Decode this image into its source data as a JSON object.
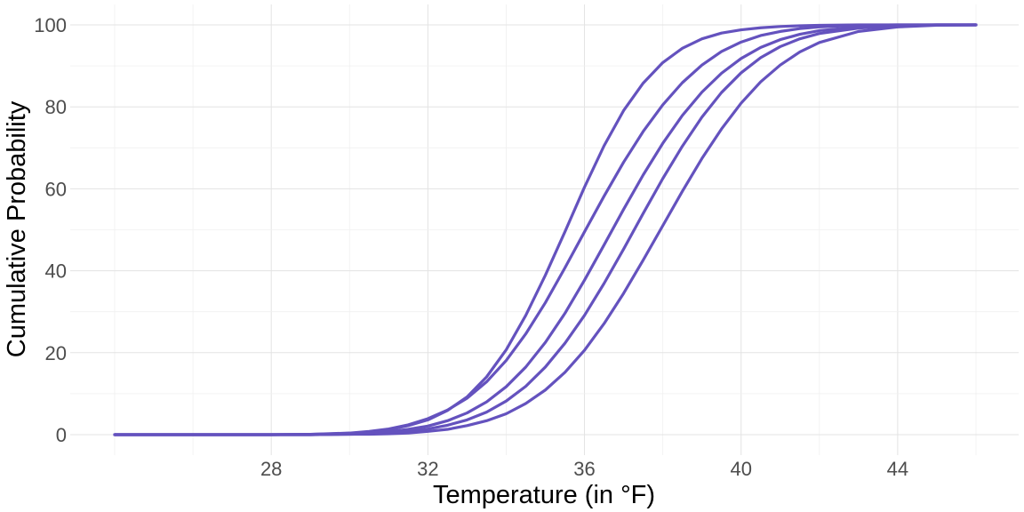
{
  "chart_data": {
    "type": "line",
    "title": "",
    "xlabel": "Temperature (in °F)",
    "ylabel": "Cumulative Probability",
    "xlim": [
      24,
      46
    ],
    "ylim": [
      0,
      100
    ],
    "x_ticks": [
      28,
      32,
      36,
      40,
      44
    ],
    "y_ticks": [
      0,
      20,
      40,
      60,
      80,
      100
    ],
    "grid": true,
    "legend": "none",
    "line_color": "#6452BE",
    "series": [
      {
        "x": [
          24,
          25,
          26,
          27,
          28,
          29,
          30,
          30.5,
          31,
          31.5,
          32,
          32.5,
          33,
          33.5,
          34,
          34.5,
          35,
          35.5,
          36,
          36.5,
          37,
          37.5,
          38,
          38.5,
          39,
          39.5,
          40,
          40.5,
          41,
          41.5,
          42,
          43,
          44,
          45,
          46
        ],
        "y": [
          0,
          0,
          0,
          0,
          0,
          0.1,
          0.3,
          0.6,
          1.2,
          2.2,
          3.6,
          5.9,
          9.2,
          14.1,
          20.7,
          29.1,
          38.9,
          49.5,
          60.4,
          70.5,
          79.1,
          85.8,
          90.8,
          94.3,
          96.6,
          98.0,
          98.8,
          99.3,
          99.6,
          99.8,
          99.9,
          100,
          100,
          100,
          100
        ]
      },
      {
        "x": [
          24,
          25,
          26,
          27,
          28,
          29,
          30,
          30.5,
          31,
          31.5,
          32,
          32.5,
          33,
          33.5,
          34,
          34.5,
          35,
          35.5,
          36,
          36.5,
          37,
          37.5,
          38,
          38.5,
          39,
          39.5,
          40,
          40.5,
          41,
          41.5,
          42,
          43,
          44,
          45,
          46
        ],
        "y": [
          0,
          0,
          0,
          0,
          0,
          0.1,
          0.4,
          0.8,
          1.4,
          2.4,
          3.9,
          6.0,
          8.9,
          12.9,
          18.1,
          24.6,
          32.2,
          40.7,
          49.5,
          58.2,
          66.5,
          74.0,
          80.5,
          85.9,
          90.2,
          93.5,
          95.8,
          97.4,
          98.4,
          99.1,
          99.5,
          99.9,
          100,
          100,
          100
        ]
      },
      {
        "x": [
          24,
          25,
          26,
          27,
          28,
          29,
          30,
          30.5,
          31,
          31.5,
          32,
          32.5,
          33,
          33.5,
          34,
          34.5,
          35,
          35.5,
          36,
          36.5,
          37,
          37.5,
          38,
          38.5,
          39,
          39.5,
          40,
          40.5,
          41,
          41.5,
          42,
          43,
          44,
          45,
          46
        ],
        "y": [
          0,
          0,
          0,
          0,
          0,
          0,
          0.2,
          0.4,
          0.7,
          1.3,
          2.1,
          3.4,
          5.3,
          8.0,
          11.7,
          16.5,
          22.5,
          29.6,
          37.7,
          46.3,
          55.0,
          63.4,
          71.1,
          77.9,
          83.6,
          88.2,
          91.8,
          94.5,
          96.4,
          97.7,
          98.6,
          99.5,
          99.9,
          100,
          100
        ]
      },
      {
        "x": [
          24,
          25,
          26,
          27,
          28,
          29,
          30,
          30.5,
          31,
          31.5,
          32,
          32.5,
          33,
          33.5,
          34,
          34.5,
          35,
          35.5,
          36,
          36.5,
          37,
          37.5,
          38,
          38.5,
          39,
          39.5,
          40,
          40.5,
          41,
          41.5,
          42,
          43,
          44,
          45,
          46
        ],
        "y": [
          0,
          0,
          0,
          0,
          0,
          0,
          0.1,
          0.2,
          0.4,
          0.8,
          1.4,
          2.3,
          3.6,
          5.5,
          8.2,
          11.8,
          16.5,
          22.3,
          29.1,
          36.9,
          45.3,
          54.0,
          62.5,
          70.4,
          77.5,
          83.5,
          88.3,
          92.0,
          94.7,
          96.6,
          97.9,
          99.2,
          99.8,
          100,
          100
        ]
      },
      {
        "x": [
          24,
          25,
          26,
          27,
          28,
          29,
          30,
          30.5,
          31,
          31.5,
          32,
          32.5,
          33,
          33.5,
          34,
          34.5,
          35,
          35.5,
          36,
          36.5,
          37,
          37.5,
          38,
          38.5,
          39,
          39.5,
          40,
          40.5,
          41,
          41.5,
          42,
          43,
          44,
          45,
          46
        ],
        "y": [
          0,
          0,
          0,
          0,
          0,
          0,
          0.1,
          0.1,
          0.2,
          0.4,
          0.8,
          1.3,
          2.2,
          3.4,
          5.1,
          7.6,
          10.9,
          15.2,
          20.6,
          27.1,
          34.5,
          42.6,
          51.0,
          59.4,
          67.4,
          74.6,
          80.9,
          86.1,
          90.2,
          93.4,
          95.7,
          98.4,
          99.5,
          99.9,
          100
        ]
      }
    ]
  }
}
